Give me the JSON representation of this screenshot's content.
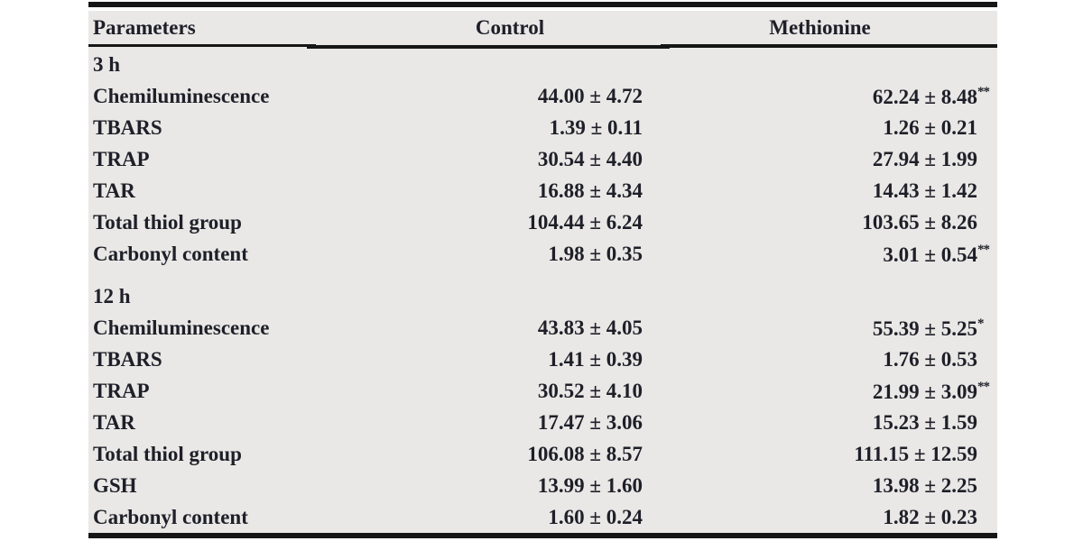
{
  "table": {
    "header": {
      "parameters": "Parameters",
      "control": "Control",
      "methionine": "Methionine"
    },
    "sections": [
      {
        "label": "3 h",
        "rows": [
          {
            "param": "Chemiluminescence",
            "control": "44.00 ± 4.72",
            "methionine": "62.24 ± 8.48",
            "sig": "**"
          },
          {
            "param": "TBARS",
            "control": "1.39 ± 0.11",
            "methionine": "1.26 ± 0.21",
            "sig": ""
          },
          {
            "param": "TRAP",
            "control": "30.54 ± 4.40",
            "methionine": "27.94 ± 1.99",
            "sig": ""
          },
          {
            "param": "TAR",
            "control": "16.88 ± 4.34",
            "methionine": "14.43 ± 1.42",
            "sig": ""
          },
          {
            "param": "Total thiol group",
            "control": "104.44 ± 6.24",
            "methionine": "103.65 ± 8.26",
            "sig": ""
          },
          {
            "param": "Carbonyl content",
            "control": "1.98 ± 0.35",
            "methionine": "3.01 ± 0.54",
            "sig": "**"
          }
        ]
      },
      {
        "label": "12 h",
        "rows": [
          {
            "param": "Chemiluminescence",
            "control": "43.83 ± 4.05",
            "methionine": "55.39 ± 5.25",
            "sig": "*"
          },
          {
            "param": "TBARS",
            "control": "1.41 ± 0.39",
            "methionine": "1.76 ± 0.53",
            "sig": ""
          },
          {
            "param": "TRAP",
            "control": "30.52 ± 4.10",
            "methionine": "21.99 ± 3.09",
            "sig": "**"
          },
          {
            "param": "TAR",
            "control": "17.47 ± 3.06",
            "methionine": "15.23 ± 1.59",
            "sig": ""
          },
          {
            "param": "Total thiol group",
            "control": "106.08 ± 8.57",
            "methionine": "111.15 ± 12.59",
            "sig": ""
          },
          {
            "param": "GSH",
            "control": "13.99 ± 1.60",
            "methionine": "13.98 ± 2.25",
            "sig": ""
          },
          {
            "param": "Carbonyl content",
            "control": "1.60 ± 0.24",
            "methionine": "1.82 ± 0.23",
            "sig": ""
          }
        ]
      }
    ],
    "colors": {
      "background": "#e9e8e6",
      "text": "#1e1f28",
      "rule": "#161616"
    }
  }
}
